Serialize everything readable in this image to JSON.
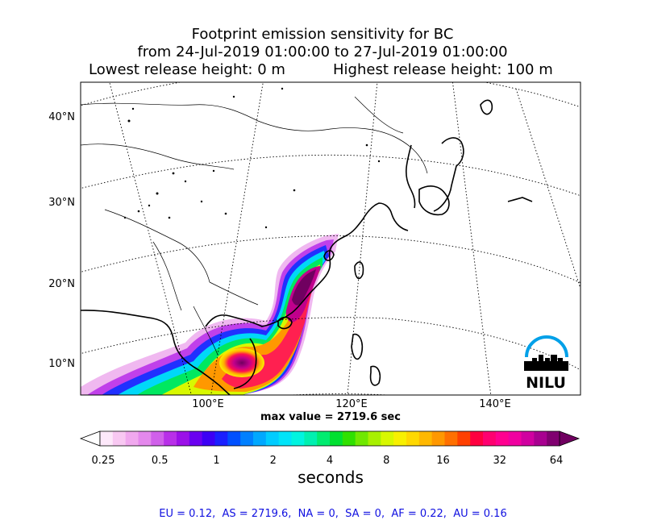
{
  "title": {
    "line1": "Footprint emission sensitivity for BC",
    "line2": "from 24-Jul-2019 01:00:00 to 27-Jul-2019 01:00:00",
    "lowest": "Lowest release height: 0 m",
    "highest": "Highest release height: 100 m"
  },
  "map": {
    "lat_labels": [
      "40°N",
      "30°N",
      "20°N",
      "10°N"
    ],
    "lon_labels": [
      "100°E",
      "120°E",
      "140°E"
    ],
    "logo_text": "NILU",
    "max_value": "max value = 2719.6 sec"
  },
  "colorbar": {
    "labels": [
      "0.25",
      "0.5",
      "1",
      "2",
      "4",
      "8",
      "16",
      "32",
      "64"
    ],
    "units": "seconds",
    "colors": [
      "#fde8fa",
      "#f8c8f2",
      "#f0a8ee",
      "#e488ec",
      "#d060ea",
      "#b830e8",
      "#9b10e8",
      "#6a00f0",
      "#3c00f5",
      "#1a20ff",
      "#0050ff",
      "#0080ff",
      "#00a8ff",
      "#00ccff",
      "#00e4f8",
      "#00f4e0",
      "#00f0b0",
      "#00ec70",
      "#00e030",
      "#30e000",
      "#70e800",
      "#a8f000",
      "#d8f800",
      "#f8f000",
      "#ffd800",
      "#ffb800",
      "#ff9800",
      "#ff7000",
      "#ff4000",
      "#ff0040",
      "#ff0070",
      "#ff0090",
      "#f000a0",
      "#d000a0",
      "#a80090",
      "#800070"
    ]
  },
  "regions_text": "EU = 0.12,  AS = 2719.6,  NA = 0,  SA = 0,  AF = 0.22,  AU = 0.16"
}
